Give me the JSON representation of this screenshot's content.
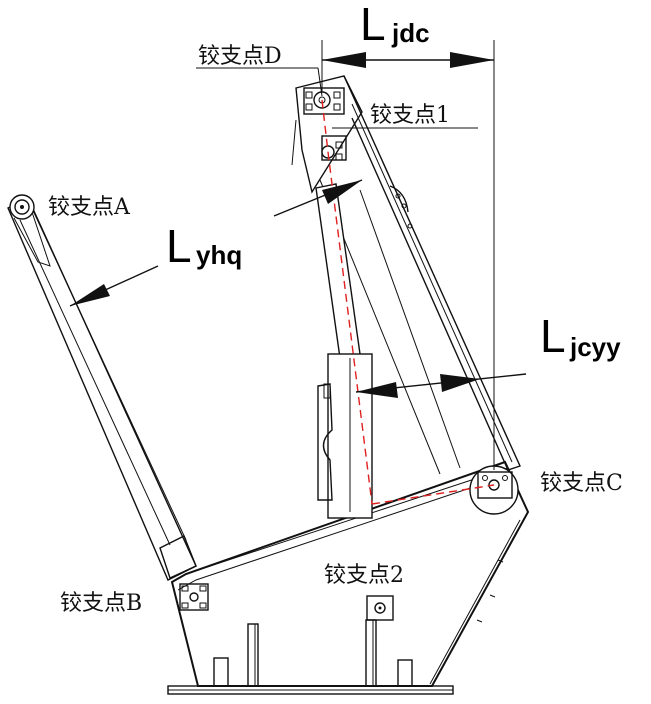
{
  "labels": {
    "pivot_d": "铰支点D",
    "pivot_1": "铰支点1",
    "pivot_a": "铰支点A",
    "pivot_b": "铰支点B",
    "pivot_2": "铰支点2",
    "pivot_c": "铰支点C"
  },
  "dimensions": {
    "ljdc": {
      "main": "L",
      "sub": "jdc"
    },
    "lyhq": {
      "main": "L",
      "sub": "yhq"
    },
    "ljcyy": {
      "main": "L",
      "sub": "jcyy"
    }
  }
}
